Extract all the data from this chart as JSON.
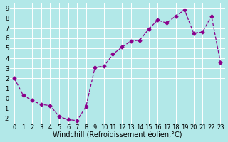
{
  "x": [
    0,
    1,
    2,
    3,
    4,
    5,
    6,
    7,
    8,
    9,
    10,
    11,
    12,
    13,
    14,
    15,
    16,
    17,
    18,
    19,
    20,
    21,
    22,
    23
  ],
  "y": [
    2.0,
    0.3,
    -0.2,
    -0.6,
    -0.7,
    -1.8,
    -2.1,
    -2.2,
    -0.8,
    3.1,
    3.2,
    4.4,
    5.1,
    5.7,
    5.8,
    6.9,
    7.8,
    7.5,
    8.2,
    8.8,
    6.5,
    6.6,
    8.2,
    3.6
  ],
  "line_color": "#8B008B",
  "marker": "D",
  "marker_size": 2.5,
  "line_width": 0.9,
  "bg_color": "#b2e8e8",
  "grid_color": "#ffffff",
  "xlabel": "Windchill (Refroidissement éolien,°C)",
  "ylim": [
    -2.5,
    9.5
  ],
  "xlim": [
    -0.5,
    23.5
  ],
  "yticks": [
    -2,
    -1,
    0,
    1,
    2,
    3,
    4,
    5,
    6,
    7,
    8,
    9
  ],
  "xticks": [
    0,
    1,
    2,
    3,
    4,
    5,
    6,
    7,
    8,
    9,
    10,
    11,
    12,
    13,
    14,
    15,
    16,
    17,
    18,
    19,
    20,
    21,
    22,
    23
  ],
  "tick_fontsize": 6,
  "xlabel_fontsize": 7
}
